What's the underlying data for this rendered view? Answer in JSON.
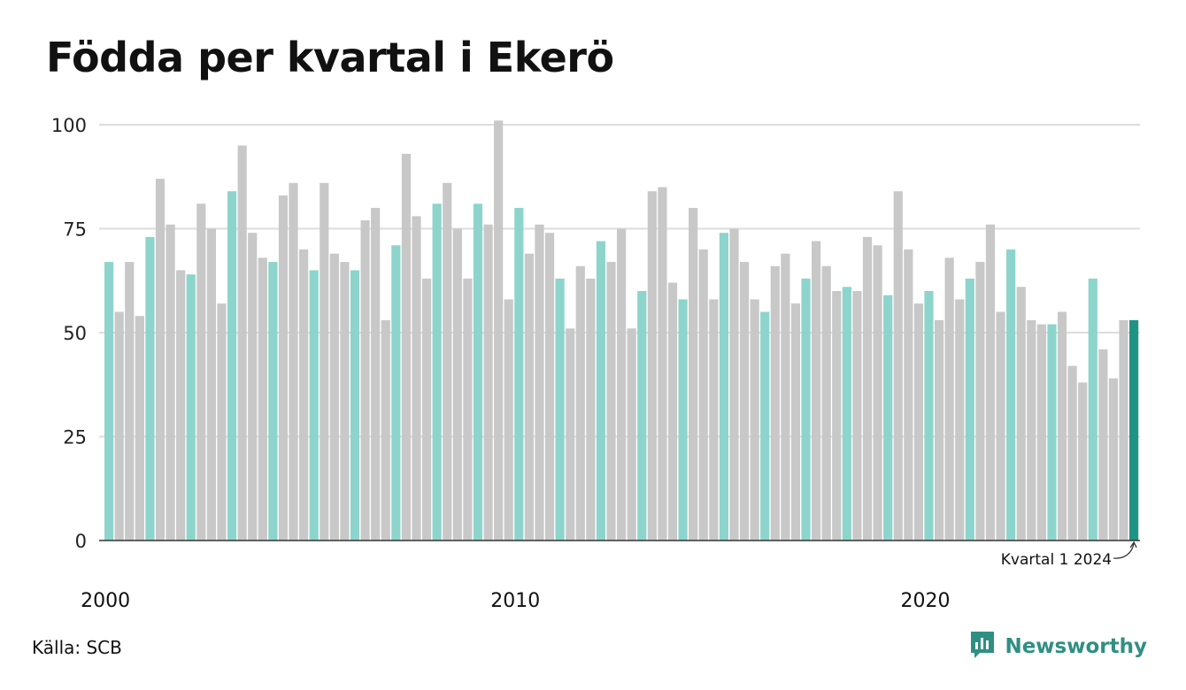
{
  "title": "Födda per kvartal i Ekerö",
  "source": "Källa: SCB",
  "brand": "Newsworthy",
  "colors": {
    "q1": "#8dd5cc",
    "other": "#c8c8c8",
    "latest": "#1f9384",
    "grid": "#dddddd",
    "axis": "#333333",
    "brand": "#2f8f82"
  },
  "chart_data": {
    "type": "bar",
    "y_ticks": [
      "0",
      "25",
      "50",
      "75",
      "100"
    ],
    "ylim": [
      0,
      100
    ],
    "x_tick_labels": [
      {
        "year": 2000,
        "label": "2000"
      },
      {
        "year": 2010,
        "label": "2010"
      },
      {
        "year": 2020,
        "label": "2020"
      }
    ],
    "start_year": 2000,
    "start_quarter": 1,
    "values": [
      67,
      55,
      67,
      54,
      73,
      87,
      76,
      65,
      64,
      81,
      75,
      57,
      84,
      95,
      74,
      68,
      67,
      83,
      86,
      70,
      65,
      86,
      69,
      67,
      65,
      77,
      80,
      53,
      71,
      93,
      78,
      63,
      81,
      86,
      75,
      63,
      81,
      76,
      101,
      58,
      80,
      69,
      76,
      74,
      63,
      51,
      66,
      63,
      72,
      67,
      75,
      51,
      60,
      84,
      85,
      62,
      58,
      80,
      70,
      58,
      74,
      75,
      67,
      58,
      55,
      66,
      69,
      57,
      63,
      72,
      66,
      60,
      61,
      60,
      73,
      71,
      59,
      84,
      70,
      57,
      60,
      53,
      68,
      58,
      63,
      67,
      76,
      55,
      70,
      61,
      53,
      52,
      52,
      55,
      42,
      38,
      63,
      46,
      39,
      53,
      53
    ],
    "annotation": "Kvartal 1 2024",
    "grid": true
  }
}
